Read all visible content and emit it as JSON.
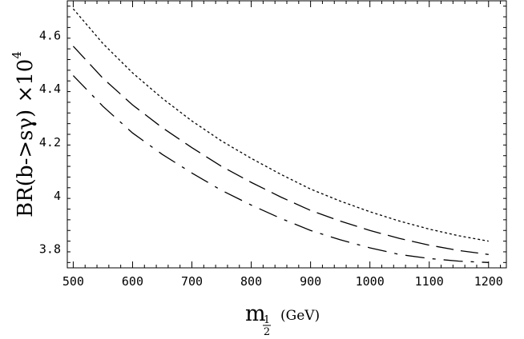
{
  "chart_data": {
    "type": "line",
    "title": "",
    "xlabel": {
      "main": "m",
      "sub_num": "1",
      "sub_den": "2",
      "unit": "(GeV)"
    },
    "ylabel": {
      "main": "BR(b->sγ) ×10",
      "exponent": "4"
    },
    "xlim": [
      490,
      1230
    ],
    "ylim": [
      3.73,
      4.73
    ],
    "xticks": [
      500,
      600,
      700,
      800,
      900,
      1000,
      1100,
      1200
    ],
    "xtick_labels": [
      "500",
      "600",
      "700",
      "800",
      "900",
      "1000",
      "1100",
      "1200"
    ],
    "yticks": [
      3.8,
      4.0,
      4.2,
      4.4,
      4.6
    ],
    "ytick_labels": [
      "3.8",
      "4",
      "4.2",
      "4.4",
      "4.6"
    ],
    "grid": false,
    "legend": "none",
    "series": [
      {
        "style": "dotted",
        "x": [
          500,
          550,
          600,
          650,
          700,
          750,
          800,
          850,
          900,
          950,
          1000,
          1050,
          1100,
          1150,
          1200
        ],
        "y": [
          4.7,
          4.57,
          4.46,
          4.365,
          4.28,
          4.205,
          4.14,
          4.08,
          4.025,
          3.98,
          3.94,
          3.905,
          3.875,
          3.85,
          3.83
        ]
      },
      {
        "style": "long-dash",
        "x": [
          500,
          550,
          600,
          650,
          700,
          750,
          800,
          850,
          900,
          950,
          1000,
          1050,
          1100,
          1150,
          1200
        ],
        "y": [
          4.56,
          4.44,
          4.34,
          4.255,
          4.18,
          4.11,
          4.05,
          3.995,
          3.945,
          3.905,
          3.87,
          3.84,
          3.815,
          3.795,
          3.78
        ]
      },
      {
        "style": "dash-dot",
        "x": [
          500,
          550,
          600,
          650,
          700,
          750,
          800,
          850,
          900,
          950,
          1000,
          1050,
          1100,
          1150,
          1200
        ],
        "y": [
          4.45,
          4.335,
          4.235,
          4.155,
          4.085,
          4.02,
          3.965,
          3.915,
          3.87,
          3.835,
          3.805,
          3.78,
          3.765,
          3.755,
          3.75
        ]
      }
    ]
  }
}
